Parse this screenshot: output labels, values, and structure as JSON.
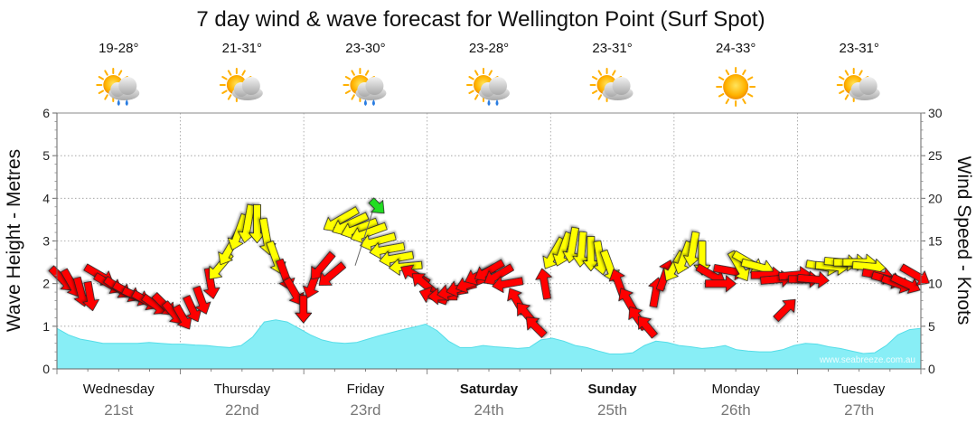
{
  "chart_data": {
    "type": "area",
    "title": "7 day wind & wave forecast for Wellington Point (Surf Spot)",
    "ylabel": "Wave Height - Metres",
    "y2label": "Wind Speed - Knots",
    "ylim": [
      0,
      6
    ],
    "y_ticks": [
      "0",
      "1",
      "2",
      "3",
      "4",
      "5",
      "6"
    ],
    "y2lim": [
      0,
      30
    ],
    "y2_ticks": [
      "0",
      "5",
      "10",
      "15",
      "20",
      "25",
      "30"
    ],
    "watermark": "www.seabreeze.com.au",
    "days": [
      {
        "day": "Wednesday",
        "date": "21st",
        "temp": "19-28°",
        "weather": "sun-cloud-rain-icon",
        "bold": false
      },
      {
        "day": "Thursday",
        "date": "22nd",
        "temp": "21-31°",
        "weather": "sun-cloud-icon",
        "bold": false
      },
      {
        "day": "Friday",
        "date": "23rd",
        "temp": "23-30°",
        "weather": "sun-cloud-rain-icon",
        "bold": false
      },
      {
        "day": "Saturday",
        "date": "24th",
        "temp": "23-28°",
        "weather": "sun-cloud-rain-icon",
        "bold": true
      },
      {
        "day": "Sunday",
        "date": "25th",
        "temp": "23-31°",
        "weather": "sun-cloud-icon",
        "bold": true
      },
      {
        "day": "Monday",
        "date": "26th",
        "temp": "24-33°",
        "weather": "sun-icon",
        "bold": false
      },
      {
        "day": "Tuesday",
        "date": "27th",
        "temp": "23-31°",
        "weather": "sun-cloud-icon",
        "bold": false
      }
    ],
    "wave_height_m": [
      0.95,
      0.8,
      0.7,
      0.65,
      0.6,
      0.6,
      0.6,
      0.6,
      0.62,
      0.6,
      0.58,
      0.58,
      0.56,
      0.55,
      0.52,
      0.5,
      0.55,
      0.75,
      1.1,
      1.15,
      1.1,
      0.95,
      0.8,
      0.68,
      0.62,
      0.6,
      0.62,
      0.7,
      0.78,
      0.85,
      0.92,
      0.98,
      1.05,
      0.9,
      0.65,
      0.5,
      0.5,
      0.55,
      0.52,
      0.5,
      0.48,
      0.5,
      0.68,
      0.72,
      0.65,
      0.55,
      0.5,
      0.42,
      0.35,
      0.35,
      0.38,
      0.55,
      0.65,
      0.62,
      0.55,
      0.52,
      0.48,
      0.5,
      0.55,
      0.45,
      0.42,
      0.4,
      0.4,
      0.45,
      0.55,
      0.6,
      0.58,
      0.52,
      0.48,
      0.42,
      0.36,
      0.38,
      0.55,
      0.8,
      0.92,
      0.95
    ],
    "wind_series": [
      {
        "color": "#ff0000",
        "points": [
          {
            "knots": 10.5,
            "dir": 315
          },
          {
            "knots": 10,
            "dir": 330
          },
          {
            "knots": 9,
            "dir": 345
          },
          {
            "knots": 8.5,
            "dir": 350
          },
          {
            "knots": 11,
            "dir": 300
          },
          {
            "knots": 10,
            "dir": 300
          },
          {
            "knots": 9.5,
            "dir": 305
          },
          {
            "knots": 9,
            "dir": 300
          },
          {
            "knots": 8.5,
            "dir": 295
          },
          {
            "knots": 8,
            "dir": 300
          },
          {
            "knots": 7.5,
            "dir": 305
          },
          {
            "knots": 7.5,
            "dir": 315
          },
          {
            "knots": 6.5,
            "dir": 320
          },
          {
            "knots": 6,
            "dir": 330
          },
          {
            "knots": 7,
            "dir": 335
          },
          {
            "knots": 8,
            "dir": 340
          },
          {
            "knots": 10,
            "dir": 350
          }
        ]
      },
      {
        "color": "#ffff00",
        "points": [
          {
            "knots": 12,
            "dir": 40
          },
          {
            "knots": 14,
            "dir": 30
          },
          {
            "knots": 16,
            "dir": 20
          },
          {
            "knots": 17,
            "dir": 10
          },
          {
            "knots": 17,
            "dir": 0
          },
          {
            "knots": 15.5,
            "dir": 350
          },
          {
            "knots": 13,
            "dir": 340
          }
        ]
      },
      {
        "color": "#ff0000",
        "points": [
          {
            "knots": 11,
            "dir": 340
          },
          {
            "knots": 9,
            "dir": 330
          },
          {
            "knots": 7,
            "dir": 0
          },
          {
            "knots": 10,
            "dir": 20
          },
          {
            "knots": 12,
            "dir": 40
          },
          {
            "knots": 11,
            "dir": 50
          }
        ]
      },
      {
        "color": "#ffff00",
        "points": [
          {
            "knots": 17.5,
            "dir": 60
          },
          {
            "knots": 17,
            "dir": 65
          },
          {
            "knots": 16.5,
            "dir": 70
          },
          {
            "knots": 16,
            "dir": 70
          },
          {
            "knots": 15,
            "dir": 75
          },
          {
            "knots": 14,
            "dir": 80
          },
          {
            "knots": 13,
            "dir": 80
          },
          {
            "knots": 12,
            "dir": 85
          }
        ]
      },
      {
        "color": "#ff0000",
        "points": [
          {
            "knots": 11,
            "dir": 120
          },
          {
            "knots": 10,
            "dir": 130
          },
          {
            "knots": 8.5,
            "dir": 110
          },
          {
            "knots": 8.5,
            "dir": 90
          },
          {
            "knots": 9,
            "dir": 80
          },
          {
            "knots": 9.5,
            "dir": 75
          },
          {
            "knots": 10,
            "dir": 70
          },
          {
            "knots": 11,
            "dir": 65
          },
          {
            "knots": 11.5,
            "dir": 60
          },
          {
            "knots": 11,
            "dir": 60
          },
          {
            "knots": 10,
            "dir": 80
          },
          {
            "knots": 8,
            "dir": 150
          },
          {
            "knots": 6.5,
            "dir": 140
          },
          {
            "knots": 5,
            "dir": 135
          },
          {
            "knots": 10,
            "dir": 170
          }
        ]
      },
      {
        "color": "#ffff00",
        "points": [
          {
            "knots": 13.5,
            "dir": 30
          },
          {
            "knots": 14,
            "dir": 20
          },
          {
            "knots": 14.5,
            "dir": 10
          },
          {
            "knots": 14,
            "dir": 5
          },
          {
            "knots": 13.5,
            "dir": 0
          },
          {
            "knots": 13,
            "dir": 350
          },
          {
            "knots": 12,
            "dir": 340
          }
        ]
      },
      {
        "color": "#ff0000",
        "points": [
          {
            "knots": 10,
            "dir": 160
          },
          {
            "knots": 8,
            "dir": 150
          },
          {
            "knots": 6,
            "dir": 145
          },
          {
            "knots": 5,
            "dir": 140
          },
          {
            "knots": 9,
            "dir": 190
          },
          {
            "knots": 11,
            "dir": 200
          }
        ]
      },
      {
        "color": "#ffff00",
        "points": [
          {
            "knots": 12,
            "dir": 30
          },
          {
            "knots": 13,
            "dir": 20
          },
          {
            "knots": 14,
            "dir": 10
          },
          {
            "knots": 13,
            "dir": 0
          }
        ]
      },
      {
        "color": "#ff0000",
        "points": [
          {
            "knots": 11,
            "dir": 300
          },
          {
            "knots": 10,
            "dir": 270
          },
          {
            "knots": 11.5,
            "dir": 280
          }
        ]
      },
      {
        "color": "#ffff00",
        "points": [
          {
            "knots": 12,
            "dir": 330
          },
          {
            "knots": 12.5,
            "dir": 300
          },
          {
            "knots": 12,
            "dir": 285
          }
        ]
      },
      {
        "color": "#ff0000",
        "points": [
          {
            "knots": 11,
            "dir": 270
          },
          {
            "knots": 10.5,
            "dir": 265
          },
          {
            "knots": 7,
            "dir": 225
          },
          {
            "knots": 11,
            "dir": 265
          },
          {
            "knots": 10.5,
            "dir": 270
          },
          {
            "knots": 10.5,
            "dir": 275
          }
        ]
      },
      {
        "color": "#ffff00",
        "points": [
          {
            "knots": 12,
            "dir": 280
          },
          {
            "knots": 12,
            "dir": 275
          },
          {
            "knots": 12.5,
            "dir": 275
          },
          {
            "knots": 12.5,
            "dir": 270
          },
          {
            "knots": 12.5,
            "dir": 270
          },
          {
            "knots": 12,
            "dir": 275
          }
        ]
      },
      {
        "color": "#ff0000",
        "points": [
          {
            "knots": 11,
            "dir": 280
          },
          {
            "knots": 10.5,
            "dir": 285
          },
          {
            "knots": 10,
            "dir": 290
          },
          {
            "knots": 10,
            "dir": 295
          },
          {
            "knots": 11,
            "dir": 300
          }
        ]
      }
    ],
    "current_marker": {
      "knots": 19,
      "dir": 45,
      "color": "#22dd22"
    }
  },
  "colors": {
    "wave_fill": "#88eef6",
    "wave_line": "#55dde8",
    "grid": "#999999",
    "title": "#111111",
    "date": "#777777"
  }
}
